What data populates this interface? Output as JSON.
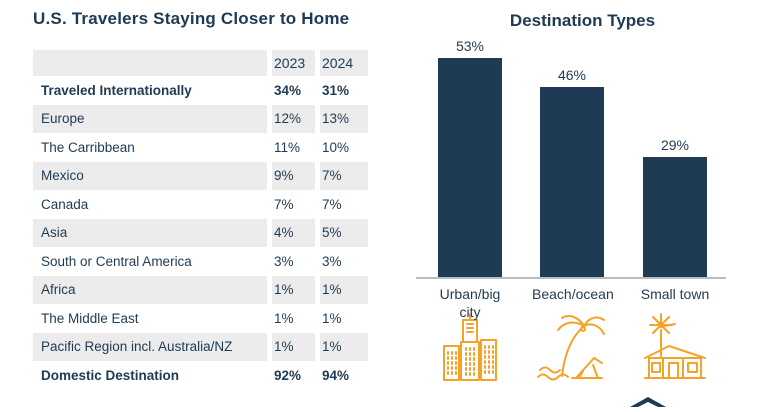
{
  "colors": {
    "navy": "#1e3a54",
    "orange": "#f5a228",
    "row_shade": "#ececec",
    "axis_gray": "#b6bec4"
  },
  "chart_data": [
    {
      "type": "table",
      "title": "U.S. Travelers Staying Closer to Home",
      "columns": [
        "2023",
        "2024"
      ],
      "rows": [
        {
          "label": "Traveled Internationally",
          "v2023": "34%",
          "v2024": "31%",
          "bold": true,
          "shaded": false
        },
        {
          "label": "Europe",
          "v2023": "12%",
          "v2024": "13%",
          "bold": false,
          "shaded": true
        },
        {
          "label": "The Carribbean",
          "v2023": "11%",
          "v2024": "10%",
          "bold": false,
          "shaded": false
        },
        {
          "label": "Mexico",
          "v2023": "9%",
          "v2024": "7%",
          "bold": false,
          "shaded": true
        },
        {
          "label": "Canada",
          "v2023": "7%",
          "v2024": "7%",
          "bold": false,
          "shaded": false
        },
        {
          "label": "Asia",
          "v2023": "4%",
          "v2024": "5%",
          "bold": false,
          "shaded": true
        },
        {
          "label": "South or Central America",
          "v2023": "3%",
          "v2024": "3%",
          "bold": false,
          "shaded": false
        },
        {
          "label": "Africa",
          "v2023": "1%",
          "v2024": "1%",
          "bold": false,
          "shaded": true
        },
        {
          "label": "The Middle East",
          "v2023": "1%",
          "v2024": "1%",
          "bold": false,
          "shaded": false
        },
        {
          "label": "Pacific Region incl. Australia/NZ",
          "v2023": "1%",
          "v2024": "1%",
          "bold": false,
          "shaded": true
        },
        {
          "label": "Domestic Destination",
          "v2023": "92%",
          "v2024": "94%",
          "bold": true,
          "shaded": false
        }
      ]
    },
    {
      "type": "bar",
      "title": "Destination Types",
      "categories": [
        "Urban/big city",
        "Beach/ocean",
        "Small town"
      ],
      "values": [
        53,
        46,
        29
      ],
      "data_labels": [
        "53%",
        "46%",
        "29%"
      ],
      "ylim": [
        0,
        60
      ],
      "bar_color": "#1e3a54",
      "grid": false,
      "legend": "none",
      "icons": [
        "city-buildings-icon",
        "palm-beach-icon",
        "farmhouse-windmill-icon"
      ]
    }
  ]
}
